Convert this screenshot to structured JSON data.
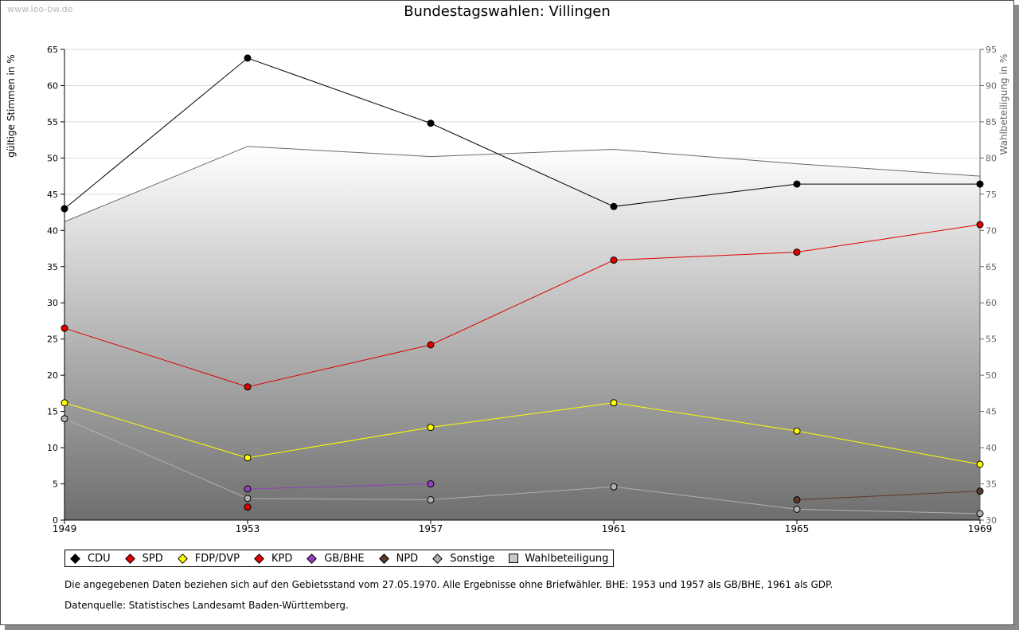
{
  "watermark": "www.leo-bw.de",
  "notes": {
    "line1": "Die angegebenen Daten beziehen sich auf den Gebietsstand vom 27.05.1970. Alle Ergebnisse ohne Briefwähler. BHE: 1953 und 1957 als GB/BHE, 1961 als GDP.",
    "line2": "Datenquelle: Statistisches Landesamt Baden-Württemberg."
  },
  "chart_data": {
    "type": "line",
    "title": "Bundestagswahlen: Villingen",
    "ylabel": "gültige Stimmen in %",
    "y2label": "Wahlbeteiligung in %",
    "xlabel": "",
    "x": [
      1949,
      1953,
      1957,
      1961,
      1965,
      1969
    ],
    "ylim": [
      0,
      65
    ],
    "y2lim": [
      30,
      95
    ],
    "yticks": [
      0,
      5,
      10,
      15,
      20,
      25,
      30,
      35,
      40,
      45,
      50,
      55,
      60,
      65
    ],
    "y2ticks": [
      30,
      35,
      40,
      45,
      50,
      55,
      60,
      65,
      70,
      75,
      80,
      85,
      90,
      95
    ],
    "series": [
      {
        "name": "CDU",
        "color": "#000000",
        "values": [
          43.0,
          63.8,
          54.8,
          43.3,
          46.4,
          46.4
        ]
      },
      {
        "name": "SPD",
        "color": "#e00000",
        "values": [
          26.5,
          18.4,
          24.2,
          35.9,
          37.0,
          40.8
        ]
      },
      {
        "name": "FDP/DVP",
        "color": "#ffff00",
        "values": [
          16.2,
          8.6,
          12.8,
          16.2,
          12.3,
          7.7
        ]
      },
      {
        "name": "KPD",
        "color": "#e00000",
        "values": [
          null,
          1.8,
          null,
          null,
          null,
          null
        ]
      },
      {
        "name": "GB/BHE",
        "color": "#9040c0",
        "values": [
          null,
          4.3,
          5.0,
          null,
          null,
          null
        ]
      },
      {
        "name": "NPD",
        "color": "#5a3a2a",
        "values": [
          null,
          null,
          null,
          null,
          2.8,
          4.0
        ]
      },
      {
        "name": "Sonstige",
        "color": "#b0b0b0",
        "values": [
          14.0,
          3.0,
          2.8,
          4.6,
          1.5,
          0.9
        ]
      }
    ],
    "turnout": {
      "name": "Wahlbeteiligung",
      "values": [
        71.2,
        81.6,
        80.2,
        81.2,
        79.2,
        77.5
      ]
    },
    "legend_position": "bottom-left",
    "grid": true
  }
}
